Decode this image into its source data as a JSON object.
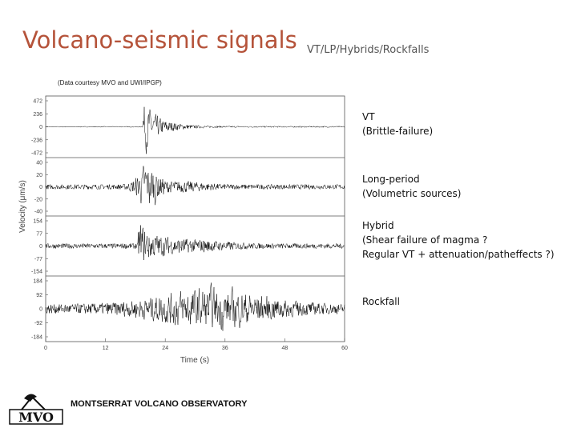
{
  "header": {
    "title": "Volcano-seismic signals",
    "subtitle": "VT/LP/Hybrids/Rockfalls"
  },
  "credit": "(Data courtesy MVO and UWI/IPGP)",
  "plot": {
    "y_label": "Velocity (μm/s)",
    "x_label": "Time (s)",
    "x_ticks": [
      0,
      12,
      24,
      36,
      48,
      60
    ],
    "panels": [
      {
        "y_ticks": [
          472,
          236,
          0,
          -236,
          -472
        ]
      },
      {
        "y_ticks": [
          40,
          20,
          0,
          -20,
          -40
        ]
      },
      {
        "y_ticks": [
          154,
          77,
          0,
          -77,
          -154
        ]
      },
      {
        "y_ticks": [
          184,
          92,
          0,
          -92,
          -184
        ]
      }
    ]
  },
  "annotations": [
    {
      "lines": [
        "VT",
        "(Brittle-failure)"
      ]
    },
    {
      "lines": [
        "Long-period",
        "(Volumetric sources)"
      ]
    },
    {
      "lines": [
        "Hybrid",
        "(Shear failure of magma ?",
        "Regular VT + attenuation/patheffects ?)"
      ]
    },
    {
      "lines": [
        "Rockfall"
      ]
    }
  ],
  "logo": {
    "text": "MONTSERRAT VOLCANO OBSERVATORY",
    "initials": "MVO"
  }
}
